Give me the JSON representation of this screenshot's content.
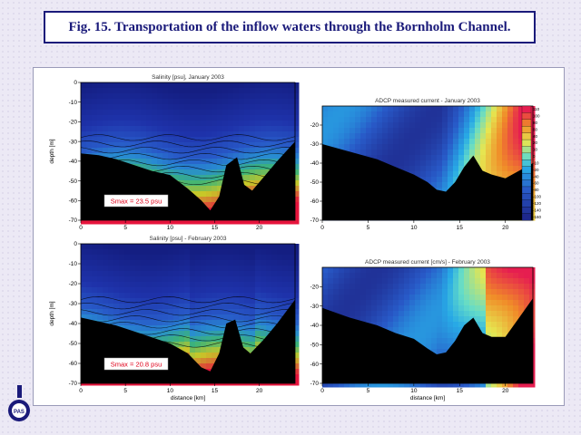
{
  "figure_title": "Fig. 15. Transportation of the inflow waters through the Bornholm Channel.",
  "logo_text": "PAS",
  "colors": {
    "title_color": "#1a1a7a",
    "salinity_low": "#1c2f8c",
    "salinity_high": "#e0103c",
    "current_low": "#1e2f8a",
    "current_high": "#e8205a",
    "seabed": "#000000",
    "smax_text": "#e0001a"
  },
  "chart_data": [
    {
      "type": "heatmap",
      "title": "Salinity [psu], January 2003",
      "xlabel": "",
      "ylabel": "depth [m]",
      "xlim": [
        0,
        24
      ],
      "ylim": [
        -70,
        0
      ],
      "xticks": [
        0,
        5,
        10,
        15,
        20
      ],
      "yticks": [
        0,
        -10,
        -20,
        -30,
        -40,
        -50,
        -60,
        -70
      ],
      "annotation": "Smax = 23.5 psu",
      "max_value": 23.5,
      "units": "psu"
    },
    {
      "type": "heatmap",
      "title": "ADCP measured current - January 2003",
      "xlabel": "",
      "ylabel": "",
      "xlim": [
        0,
        23
      ],
      "ylim": [
        -70,
        -10
      ],
      "xticks": [
        0,
        5,
        10,
        15,
        20
      ],
      "yticks": [
        -20,
        -30,
        -40,
        -50,
        -60,
        -70
      ],
      "colorbar_ticks": [
        "110",
        "100",
        "80",
        "60",
        "40",
        "20",
        "10",
        "0",
        "-10",
        "-20",
        "-40",
        "-60",
        "-80",
        "-100",
        "-120",
        "-140",
        "-160"
      ]
    },
    {
      "type": "heatmap",
      "title": "Salinity [psu] - February 2003",
      "xlabel": "distance [km]",
      "ylabel": "depth [m]",
      "xlim": [
        0,
        24
      ],
      "ylim": [
        -70,
        0
      ],
      "xticks": [
        0,
        5,
        10,
        15,
        20
      ],
      "yticks": [
        0,
        -10,
        -20,
        -30,
        -40,
        -50,
        -60,
        -70
      ],
      "annotation": "Smax = 20.8 psu",
      "max_value": 20.8,
      "units": "psu"
    },
    {
      "type": "heatmap",
      "title": "ADCP measured current [cm/s] - February 2003",
      "xlabel": "distance [km]",
      "ylabel": "",
      "xlim": [
        0,
        23
      ],
      "ylim": [
        -70,
        -10
      ],
      "xticks": [
        0,
        5,
        10,
        15,
        20
      ],
      "yticks": [
        -20,
        -30,
        -40,
        -50,
        -60,
        -70
      ]
    }
  ]
}
